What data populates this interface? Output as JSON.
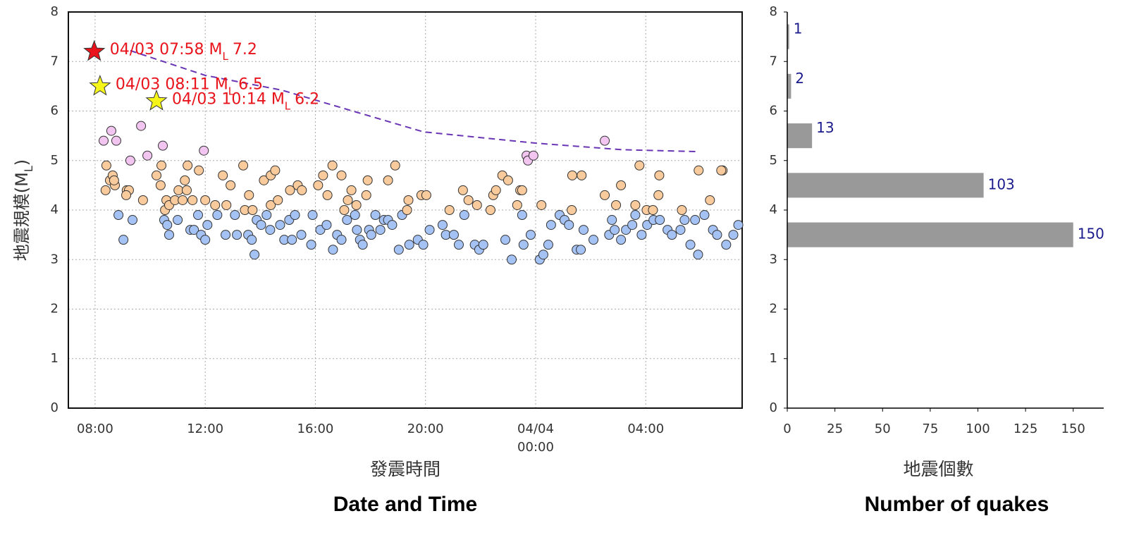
{
  "chart_data": [
    {
      "type": "scatter",
      "y_label": "地震規模(M",
      "y_label_sub": "L",
      "y_label_end": ")",
      "x_label": "發震時間",
      "x_label_en": "Date and Time",
      "xlim": [
        7.03,
        31.5
      ],
      "ylim": [
        0,
        8
      ],
      "xticks": [
        {
          "value": 8,
          "label": "08:00"
        },
        {
          "value": 12,
          "label": "12:00"
        },
        {
          "value": 16,
          "label": "16:00"
        },
        {
          "value": 20,
          "label": "20:00"
        },
        {
          "value": 24,
          "label": "04/04 00:00"
        },
        {
          "value": 28,
          "label": "04:00"
        }
      ],
      "yticks": [
        0,
        1,
        2,
        3,
        4,
        5,
        6,
        7,
        8
      ],
      "grid": true,
      "series": [
        {
          "color": "#a4c2f4",
          "x": [
            8.85,
            9.03,
            9.36,
            10.51,
            10.62,
            10.69,
            11.0,
            11.46,
            11.59,
            11.74,
            11.85,
            12.0,
            12.08,
            12.44,
            12.74,
            13.08,
            13.15,
            13.56,
            13.69,
            13.79,
            13.87,
            14.03,
            14.23,
            14.36,
            14.72,
            14.87,
            15.05,
            15.15,
            15.26,
            15.49,
            15.85,
            15.9,
            16.18,
            16.41,
            16.64,
            16.79,
            16.95,
            17.15,
            17.44,
            17.51,
            17.62,
            17.72,
            17.95,
            18.03,
            18.18,
            18.36,
            18.49,
            18.64,
            18.79,
            19.03,
            19.15,
            19.41,
            19.72,
            19.92,
            20.15,
            20.62,
            20.74,
            21.03,
            21.21,
            21.41,
            21.79,
            21.95,
            22.1,
            22.9,
            23.13,
            23.51,
            23.56,
            23.82,
            24.15,
            24.28,
            24.46,
            24.56,
            24.87,
            25.05,
            25.21,
            25.49,
            25.64,
            25.74,
            26.1,
            26.67,
            26.77,
            26.87,
            27.1,
            27.28,
            27.51,
            27.62,
            27.85,
            28.05,
            28.28,
            28.51,
            28.79,
            28.95,
            29.26,
            29.41,
            29.62,
            29.9,
            29.79,
            30.13,
            30.44,
            30.59,
            30.92,
            31.18,
            31.36
          ],
          "values": [
            3.9,
            3.4,
            3.8,
            3.8,
            3.7,
            3.5,
            3.8,
            3.6,
            3.6,
            3.9,
            3.5,
            3.4,
            3.7,
            3.9,
            3.5,
            3.9,
            3.5,
            3.5,
            3.4,
            3.1,
            3.8,
            3.7,
            3.9,
            3.6,
            3.7,
            3.4,
            3.8,
            3.4,
            3.9,
            3.5,
            3.3,
            3.9,
            3.6,
            3.7,
            3.2,
            3.5,
            3.4,
            3.8,
            3.9,
            3.6,
            3.4,
            3.3,
            3.6,
            3.5,
            3.9,
            3.6,
            3.8,
            3.8,
            3.7,
            3.2,
            3.9,
            3.3,
            3.4,
            3.3,
            3.6,
            3.7,
            3.5,
            3.5,
            3.3,
            3.9,
            3.3,
            3.2,
            3.3,
            3.4,
            3.0,
            3.9,
            3.3,
            3.5,
            3.0,
            3.1,
            3.3,
            3.7,
            3.9,
            3.8,
            3.7,
            3.2,
            3.2,
            3.6,
            3.4,
            3.5,
            3.8,
            3.6,
            3.4,
            3.6,
            3.7,
            3.9,
            3.5,
            3.7,
            3.8,
            3.8,
            3.6,
            3.5,
            3.6,
            3.8,
            3.3,
            3.1,
            3.8,
            3.9,
            3.6,
            3.5,
            3.3,
            3.5,
            3.7
          ]
        },
        {
          "color": "#f9cb9c",
          "x": [
            8.41,
            8.38,
            8.54,
            8.64,
            8.72,
            8.69,
            9.15,
            9.23,
            9.13,
            9.74,
            10.23,
            10.38,
            10.41,
            10.54,
            10.59,
            10.69,
            10.9,
            11.03,
            11.18,
            11.26,
            11.33,
            11.36,
            11.54,
            11.77,
            12.0,
            12.36,
            12.64,
            12.77,
            12.92,
            13.38,
            13.44,
            13.59,
            13.72,
            14.13,
            14.38,
            14.54,
            14.38,
            14.64,
            15.08,
            15.36,
            15.51,
            16.1,
            16.28,
            16.44,
            16.62,
            16.95,
            17.05,
            17.18,
            17.31,
            17.49,
            17.85,
            17.9,
            18.64,
            18.9,
            19.33,
            19.38,
            19.85,
            20.03,
            20.87,
            21.36,
            21.56,
            21.87,
            22.36,
            22.46,
            22.56,
            22.79,
            23.0,
            23.44,
            23.51,
            23.33,
            24.21,
            25.33,
            25.67,
            25.31,
            26.51,
            26.92,
            27.1,
            27.62,
            27.77,
            28.03,
            28.26,
            28.46,
            28.49,
            29.31,
            29.92,
            30.33,
            30.79,
            30.74
          ],
          "values": [
            4.9,
            4.4,
            4.6,
            4.7,
            4.5,
            4.6,
            4.4,
            4.4,
            4.3,
            4.2,
            4.7,
            4.5,
            4.9,
            4.0,
            4.2,
            4.1,
            4.2,
            4.4,
            4.2,
            4.6,
            4.4,
            4.9,
            4.2,
            4.8,
            4.2,
            4.1,
            4.7,
            4.1,
            4.5,
            4.9,
            4.0,
            4.3,
            4.0,
            4.6,
            4.7,
            4.8,
            4.1,
            4.2,
            4.4,
            4.5,
            4.4,
            4.5,
            4.7,
            4.3,
            4.9,
            4.7,
            4.0,
            4.2,
            4.4,
            4.1,
            4.3,
            4.6,
            4.6,
            4.9,
            4.0,
            4.2,
            4.3,
            4.3,
            4.0,
            4.4,
            4.2,
            4.1,
            4.0,
            4.3,
            4.4,
            4.7,
            4.6,
            4.4,
            4.4,
            4.1,
            4.1,
            4.7,
            4.7,
            4.0,
            4.3,
            4.1,
            4.5,
            4.1,
            4.9,
            4.0,
            4.0,
            4.3,
            4.7,
            4.0,
            4.8,
            4.2,
            4.8,
            4.8
          ]
        },
        {
          "color": "#f2c4f0",
          "x": [
            8.31,
            8.59,
            8.77,
            9.28,
            9.67,
            9.9,
            10.46,
            11.95,
            23.67,
            23.72,
            23.92,
            26.51
          ],
          "values": [
            5.4,
            5.6,
            5.4,
            5.0,
            5.7,
            5.1,
            5.3,
            5.2,
            5.1,
            5.0,
            5.1,
            5.4
          ]
        }
      ],
      "trend": {
        "color": "#6a35b5",
        "x": [
          9.28,
          12.0,
          14.79,
          19.92,
          24.03,
          27.1,
          29.87
        ],
        "values": [
          7.22,
          6.72,
          6.42,
          5.58,
          5.35,
          5.22,
          5.18
        ]
      },
      "mag_symbol": "M",
      "mag_sub": "L",
      "highlights": [
        {
          "x": 7.97,
          "y": 7.2,
          "color": "#e8131b",
          "label": "04/03 07:58"
        },
        {
          "x": 8.18,
          "y": 6.5,
          "color": "#f5f51a",
          "label": "04/03 08:11"
        },
        {
          "x": 10.23,
          "y": 6.2,
          "color": "#f5f51a",
          "label": "04/03 10:14"
        }
      ]
    },
    {
      "type": "barh",
      "x_label": "地震個數",
      "x_label_en": "Number of quakes",
      "y": [
        3.5,
        4.5,
        5.5,
        6.5,
        7.5
      ],
      "values": [
        150,
        103,
        13,
        2,
        1
      ],
      "color": "#999999",
      "label_color": "#1a1a8c",
      "xlim": [
        0,
        166
      ],
      "ylim": [
        0,
        8
      ],
      "xticks": [
        0,
        25,
        50,
        75,
        100,
        125,
        150
      ],
      "yticks": [
        0,
        1,
        2,
        3,
        4,
        5,
        6,
        7,
        8
      ],
      "grid": false
    }
  ]
}
